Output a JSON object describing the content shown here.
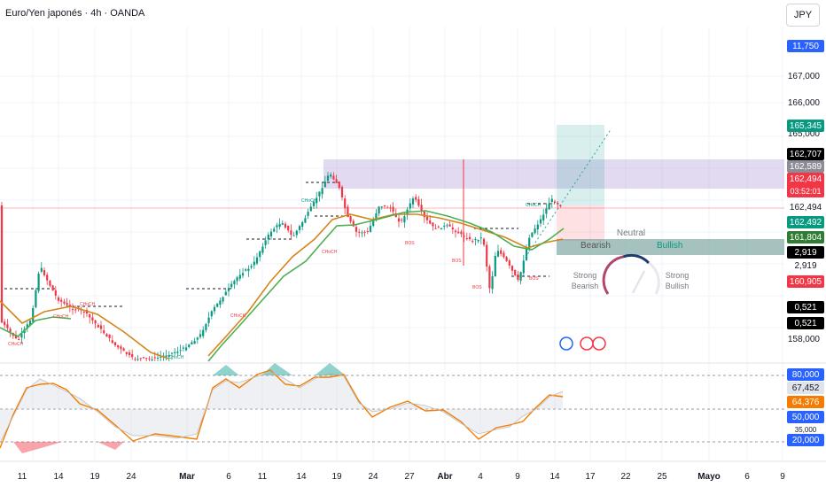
{
  "header": {
    "title": "Euro/Yen japonés · 4h · OANDA",
    "currency": "JPY"
  },
  "chart_data": {
    "type": "candlestick",
    "symbol": "Euro/Yen japonés",
    "timeframe": "4h",
    "source": "OANDA",
    "price_axis": {
      "ticks": [
        "167,000",
        "166,000",
        "165,000",
        "158,000"
      ],
      "partial_ticks": [
        "0",
        "0"
      ]
    },
    "time_axis": [
      "11",
      "14",
      "19",
      "24",
      "Mar",
      "6",
      "11",
      "14",
      "19",
      "24",
      "27",
      "Abr",
      "4",
      "9",
      "14",
      "17",
      "22",
      "25",
      "Mayo",
      "6",
      "9"
    ],
    "price_badges": [
      {
        "text": "11,750",
        "bg": "#2962ff",
        "fg": "#ffffff"
      },
      {
        "text": "165,345",
        "bg": "#089981",
        "fg": "#ffffff"
      },
      {
        "text": "162,707",
        "bg": "#000000",
        "fg": "#ffffff"
      },
      {
        "text": "162,589",
        "bg": "#8c8c96",
        "fg": "#ffffff"
      },
      {
        "text": "162,494",
        "bg": "#f23645",
        "fg": "#ffffff",
        "extra": "03:52:01"
      },
      {
        "text": "162,494",
        "bg": "#ffffff",
        "fg": "#131722"
      },
      {
        "text": "162,492",
        "bg": "#089981",
        "fg": "#ffffff"
      },
      {
        "text": "161,804",
        "bg": "#2e7d32",
        "fg": "#ffffff"
      },
      {
        "text": "2,919",
        "bg": "#000000",
        "fg": "#ffffff"
      },
      {
        "text": "2,919",
        "bg": "#ffffff",
        "fg": "#131722"
      },
      {
        "text": "160,905",
        "bg": "#f23645",
        "fg": "#ffffff"
      },
      {
        "text": "0,521",
        "bg": "#000000",
        "fg": "#ffffff"
      },
      {
        "text": "0,521",
        "bg": "#000000",
        "fg": "#ffffff"
      }
    ],
    "structure_labels": {
      "choch": [
        "CHoCH",
        "CHoCH",
        "CHoCH",
        "CHoCH",
        "CHoCH",
        "CHoCH",
        "CHoCH",
        "CHoCH"
      ],
      "bos": [
        "BOS",
        "BOS",
        "BOS",
        "BOS"
      ]
    },
    "gauge": {
      "labels": {
        "neutral": "Neutral",
        "bearish": "Bearish",
        "bullish": "Bullish",
        "strong_bearish": "Strong Bearish",
        "strong_bullish": "Strong Bullish"
      },
      "state": "Bullish"
    },
    "oscillator": {
      "levels": [
        "80,000",
        "50,000",
        "20,000"
      ],
      "badges": [
        {
          "text": "80,000",
          "bg": "#2962ff",
          "fg": "#ffffff"
        },
        {
          "text": "67,452",
          "bg": "#e0e3eb",
          "fg": "#131722"
        },
        {
          "text": "64,376",
          "bg": "#f57c00",
          "fg": "#ffffff"
        },
        {
          "text": "50,000",
          "bg": "#2962ff",
          "fg": "#ffffff"
        },
        {
          "text": "20,000",
          "bg": "#2962ff",
          "fg": "#ffffff"
        }
      ],
      "partial_label": "35,000"
    },
    "colors": {
      "up": "#089981",
      "down": "#f23645",
      "ma_orange": "#d4861c",
      "ma_green": "#4caf50",
      "zone": "#b39ddb"
    }
  }
}
